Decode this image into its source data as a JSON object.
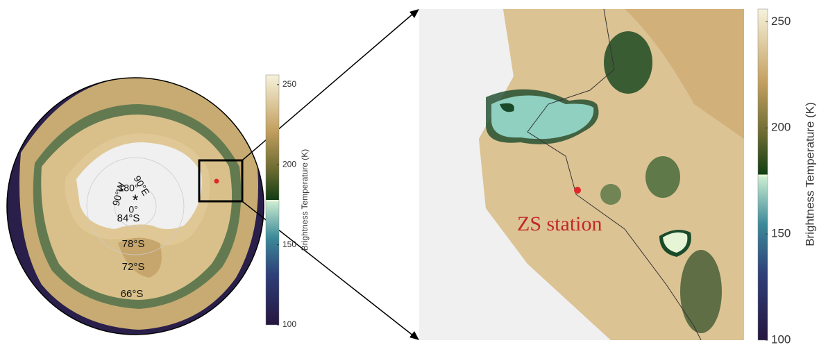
{
  "left_map": {
    "latitude_labels": [
      "84°S",
      "78°S",
      "72°S",
      "66°S"
    ],
    "longitude_labels": [
      "180°",
      "90°E",
      "90°W",
      "0°"
    ]
  },
  "right_map": {
    "station_label": "ZS station"
  },
  "colorbar": {
    "label": "Brightness Temperature (K)",
    "lim": [
      100,
      256
    ],
    "ticks": [
      100,
      150,
      200,
      250
    ]
  }
}
